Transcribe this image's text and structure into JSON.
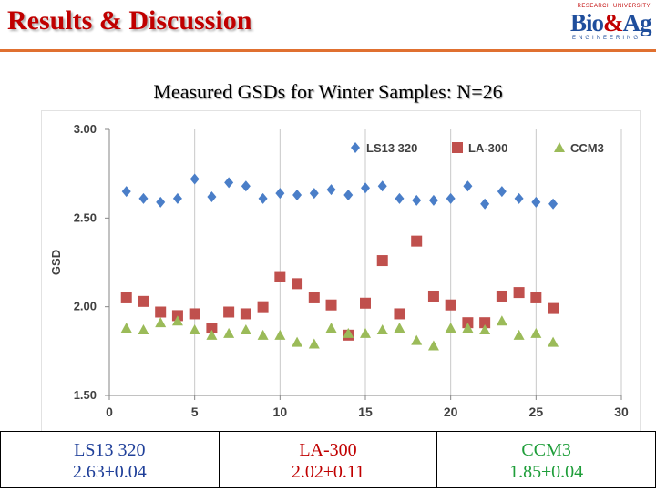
{
  "header": {
    "title": "Results & Discussion",
    "logo": {
      "text_main_a": "Bio",
      "text_amp": "&",
      "text_main_b": "Ag",
      "text_univ": "RESEARCH UNIVERSITY",
      "text_sub": "ENGINEERING"
    }
  },
  "chart_subtitle": "Measured GSDs for Winter Samples: N=26",
  "chart_data": {
    "type": "scatter",
    "title": "",
    "xlabel": "",
    "ylabel": "GSD",
    "xlim": [
      0,
      30
    ],
    "ylim": [
      1.5,
      3.0
    ],
    "x_ticks": [
      "0",
      "5",
      "10",
      "15",
      "20",
      "25",
      "30"
    ],
    "y_ticks": [
      "1.50",
      "2.00",
      "2.50",
      "3.00"
    ],
    "grid": "vertical",
    "legend_position": "top",
    "x": [
      1,
      2,
      3,
      4,
      5,
      6,
      7,
      8,
      9,
      10,
      11,
      12,
      13,
      14,
      15,
      16,
      17,
      18,
      19,
      20,
      21,
      22,
      23,
      24,
      25,
      26
    ],
    "series": [
      {
        "name": "LS13 320",
        "marker": "diamond",
        "color": "#4a7ec8",
        "values": [
          2.65,
          2.61,
          2.59,
          2.61,
          2.72,
          2.62,
          2.7,
          2.68,
          2.61,
          2.64,
          2.63,
          2.64,
          2.66,
          2.63,
          2.67,
          2.68,
          2.61,
          2.6,
          2.6,
          2.61,
          2.68,
          2.58,
          2.65,
          2.61,
          2.59,
          2.58
        ]
      },
      {
        "name": "LA-300",
        "marker": "square",
        "color": "#c0504d",
        "values": [
          2.05,
          2.03,
          1.97,
          1.95,
          1.96,
          1.88,
          1.97,
          1.96,
          2.0,
          2.17,
          2.13,
          2.05,
          2.01,
          1.84,
          2.02,
          2.26,
          1.96,
          2.37,
          2.06,
          2.01,
          1.91,
          1.91,
          2.06,
          2.08,
          2.05,
          1.99
        ]
      },
      {
        "name": "CCM3",
        "marker": "triangle",
        "color": "#9bbb59",
        "values": [
          1.88,
          1.87,
          1.91,
          1.92,
          1.87,
          1.84,
          1.85,
          1.87,
          1.84,
          1.84,
          1.8,
          1.79,
          1.88,
          1.85,
          1.85,
          1.87,
          1.88,
          1.81,
          1.78,
          1.88,
          1.88,
          1.87,
          1.92,
          1.84,
          1.85,
          1.8
        ]
      }
    ]
  },
  "summary": {
    "columns": [
      {
        "name": "LS13 320",
        "value": "2.63±0.04"
      },
      {
        "name": "LA-300",
        "value": "2.02±0.11"
      },
      {
        "name": "CCM3",
        "value": "1.85±0.04"
      }
    ]
  }
}
